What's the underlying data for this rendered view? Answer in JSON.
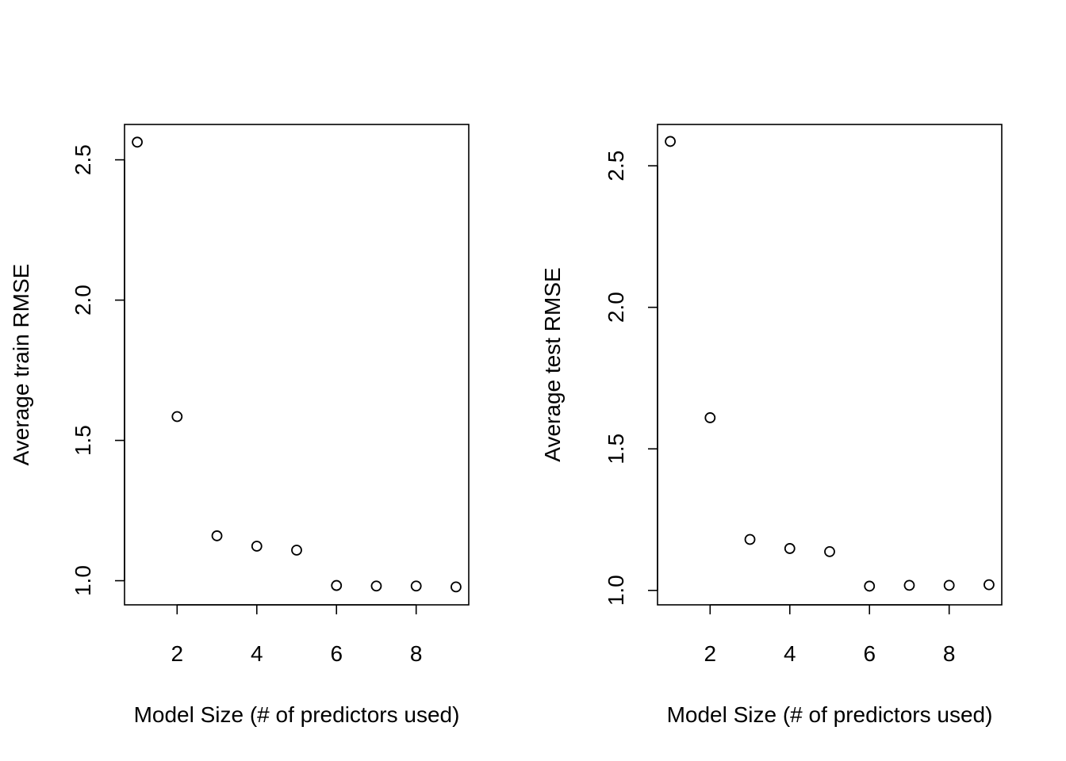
{
  "chart_data": [
    {
      "type": "scatter",
      "title": "",
      "xlabel": "Model Size (# of predictors used)",
      "ylabel": "Average train RMSE",
      "xlim": [
        0.68,
        9.32
      ],
      "ylim": [
        0.914,
        2.626
      ],
      "xticks": [
        2,
        4,
        6,
        8
      ],
      "yticks": [
        1.0,
        1.5,
        2.0,
        2.5
      ],
      "ytick_labels": [
        "1.0",
        "1.5",
        "2.0",
        "2.5"
      ],
      "grid": false,
      "legend": "none",
      "x": [
        1,
        2,
        3,
        4,
        5,
        6,
        7,
        8,
        9
      ],
      "y": [
        2.563,
        1.585,
        1.16,
        1.123,
        1.109,
        0.983,
        0.981,
        0.981,
        0.978
      ]
    },
    {
      "type": "scatter",
      "title": "",
      "xlabel": "Model Size (# of predictors used)",
      "ylabel": "Average test RMSE",
      "xlim": [
        0.68,
        9.32
      ],
      "ylim": [
        0.949,
        2.646
      ],
      "xticks": [
        2,
        4,
        6,
        8
      ],
      "yticks": [
        1.0,
        1.5,
        2.0,
        2.5
      ],
      "ytick_labels": [
        "1.0",
        "1.5",
        "2.0",
        "2.5"
      ],
      "grid": false,
      "legend": "none",
      "x": [
        1,
        2,
        3,
        4,
        5,
        6,
        7,
        8,
        9
      ],
      "y": [
        2.586,
        1.61,
        1.18,
        1.148,
        1.137,
        1.015,
        1.018,
        1.018,
        1.02
      ]
    }
  ],
  "colors": {
    "background": "#ffffff",
    "axis": "#000000",
    "point_stroke": "#000000"
  }
}
